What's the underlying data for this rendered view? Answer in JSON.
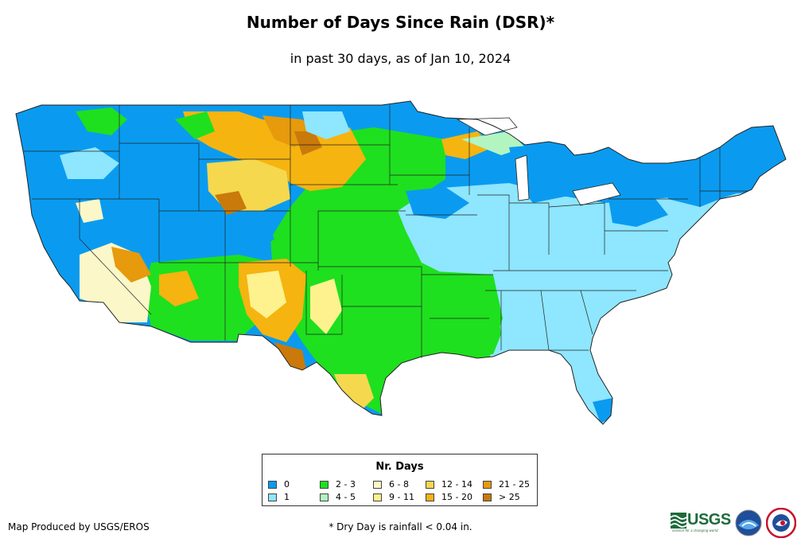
{
  "header": {
    "title": "Number of Days Since Rain (DSR)*",
    "subtitle": "in past 30 days, as of Jan 10, 2024"
  },
  "legend": {
    "title": "Nr. Days",
    "items": [
      {
        "label": "0",
        "color": "#0a9bf0"
      },
      {
        "label": "1",
        "color": "#8ee6ff"
      },
      {
        "label": "2 - 3",
        "color": "#1ee01e"
      },
      {
        "label": "4 - 5",
        "color": "#b2f5c0"
      },
      {
        "label": "6 - 8",
        "color": "#fbf7c8"
      },
      {
        "label": "9 - 11",
        "color": "#fdf28e"
      },
      {
        "label": "12 - 14",
        "color": "#f5d84e"
      },
      {
        "label": "15 - 20",
        "color": "#f5b410"
      },
      {
        "label": "21 - 25",
        "color": "#e69a0c"
      },
      {
        "label": "> 25",
        "color": "#c97a0a"
      }
    ]
  },
  "footer": {
    "credit": "Map Produced by USGS/EROS",
    "footnote": "* Dry Day is rainfall < 0.04 in.",
    "usgs_logo_text": "USGS",
    "usgs_tagline": "science for a changing world"
  },
  "map": {
    "region": "Contiguous United States",
    "outline_color": "#222222"
  }
}
